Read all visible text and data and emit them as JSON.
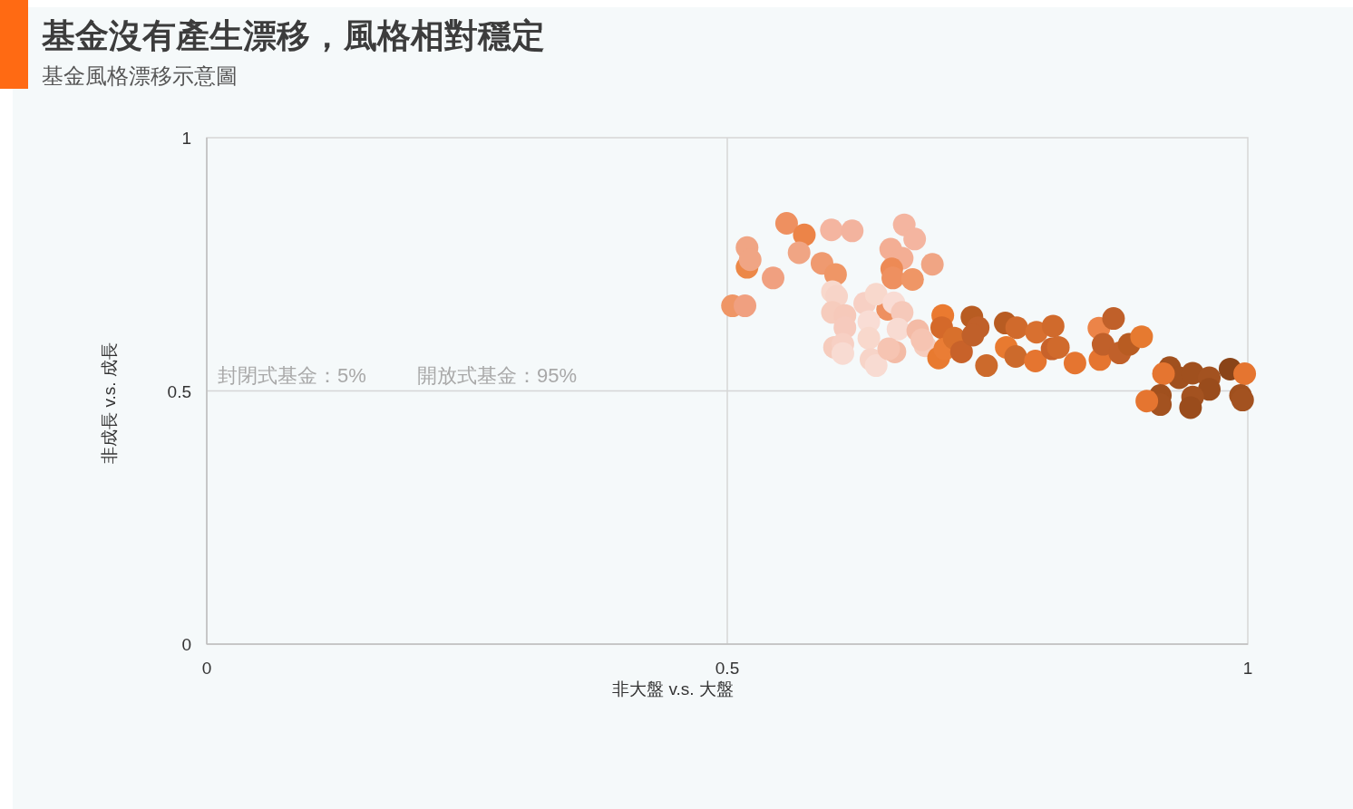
{
  "chart_data": {
    "type": "scatter",
    "title": "基金沒有產生漂移，風格相對穩定",
    "subtitle": "基金風格漂移示意圖",
    "xlabel": "非大盤 v.s. 大盤",
    "ylabel": "非成長 v.s. 成長",
    "annotations": [
      "封閉式基金：5%",
      "開放式基金：95%"
    ],
    "x": [
      0.557,
      0.574,
      0.6,
      0.62,
      0.519,
      0.519,
      0.522,
      0.544,
      0.569,
      0.591,
      0.604,
      0.505,
      0.517,
      0.67,
      0.68,
      0.657,
      0.668,
      0.658,
      0.659,
      0.678,
      0.697,
      0.654,
      0.601,
      0.605,
      0.601,
      0.613,
      0.613,
      0.603,
      0.611,
      0.611,
      0.632,
      0.643,
      0.636,
      0.636,
      0.638,
      0.643,
      0.66,
      0.668,
      0.664,
      0.661,
      0.655,
      0.683,
      0.69,
      0.687,
      0.707,
      0.706,
      0.703,
      0.709,
      0.718,
      0.725,
      0.735,
      0.741,
      0.736,
      0.749,
      0.767,
      0.778,
      0.768,
      0.777,
      0.797,
      0.796,
      0.813,
      0.812,
      0.818,
      0.834,
      0.857,
      0.858,
      0.871,
      0.861,
      0.877,
      0.886,
      0.898,
      0.925,
      0.934,
      0.919,
      0.947,
      0.963,
      0.963,
      0.983,
      0.997,
      0.916,
      0.916,
      0.903,
      0.947,
      0.945,
      0.993,
      0.995
    ],
    "values": [
      0.831,
      0.808,
      0.818,
      0.816,
      0.783,
      0.744,
      0.759,
      0.723,
      0.773,
      0.752,
      0.73,
      0.668,
      0.668,
      0.828,
      0.8,
      0.78,
      0.762,
      0.741,
      0.723,
      0.72,
      0.75,
      0.661,
      0.696,
      0.687,
      0.655,
      0.649,
      0.625,
      0.586,
      0.592,
      0.574,
      0.673,
      0.691,
      0.637,
      0.604,
      0.562,
      0.55,
      0.674,
      0.655,
      0.622,
      0.577,
      0.583,
      0.619,
      0.589,
      0.601,
      0.649,
      0.625,
      0.565,
      0.583,
      0.604,
      0.577,
      0.646,
      0.625,
      0.61,
      0.55,
      0.634,
      0.625,
      0.586,
      0.568,
      0.616,
      0.559,
      0.628,
      0.583,
      0.586,
      0.555,
      0.624,
      0.562,
      0.643,
      0.592,
      0.575,
      0.592,
      0.607,
      0.546,
      0.526,
      0.534,
      0.535,
      0.526,
      0.503,
      0.543,
      0.534,
      0.491,
      0.473,
      0.48,
      0.488,
      0.467,
      0.491,
      0.482
    ],
    "colors": [
      "#ee9060",
      "#ec8448",
      "#f4b5a0",
      "#f3b39e",
      "#f0a584",
      "#ec8848",
      "#f0a584",
      "#f0a080",
      "#f0a584",
      "#ef9a70",
      "#ef9666",
      "#ef9666",
      "#f0a080",
      "#f4b5a0",
      "#f4b5a0",
      "#f3ae94",
      "#f3ae94",
      "#ed8a55",
      "#ee9060",
      "#ef9666",
      "#f0a584",
      "#ee9060",
      "#f8d8cc",
      "#f7d4c8",
      "#f6ccbd",
      "#f6c9ba",
      "#f6cabd",
      "#f6ccbd",
      "#f7d0c4",
      "#f8dbd2",
      "#f7d0c4",
      "#f8d8cc",
      "#f9ddd5",
      "#f8d8cc",
      "#f7d4c8",
      "#f8dbd2",
      "#f9dcd4",
      "#f6c9ba",
      "#f8dbd2",
      "#f3bba6",
      "#f6c4b2",
      "#f4bba6",
      "#f6ccbd",
      "#f6c4b2",
      "#ea7a30",
      "#d4692a",
      "#e87a30",
      "#ea7d35",
      "#d8702c",
      "#c8622a",
      "#b85c22",
      "#c0602a",
      "#c0602a",
      "#cc6a2c",
      "#b85c22",
      "#d06a2c",
      "#e87a30",
      "#cc6a2c",
      "#d87030",
      "#e57530",
      "#d06a2c",
      "#c8622a",
      "#d06a2c",
      "#e57530",
      "#ec8448",
      "#e57530",
      "#c0602a",
      "#c0602a",
      "#c0602a",
      "#b85c22",
      "#e67a30",
      "#a0501e",
      "#a0501e",
      "#e57530",
      "#a0501e",
      "#a35220",
      "#9a4c1c",
      "#8a4418",
      "#e57530",
      "#a0501e",
      "#a35220",
      "#e57530",
      "#a35220",
      "#9a4c1c",
      "#a0501e",
      "#a35220"
    ],
    "xlim": [
      0,
      1
    ],
    "ylim": [
      0,
      1
    ],
    "xticks": [
      0,
      0.5,
      1
    ],
    "yticks": [
      0,
      0.5,
      1
    ],
    "grid": true,
    "marker": "circle"
  }
}
